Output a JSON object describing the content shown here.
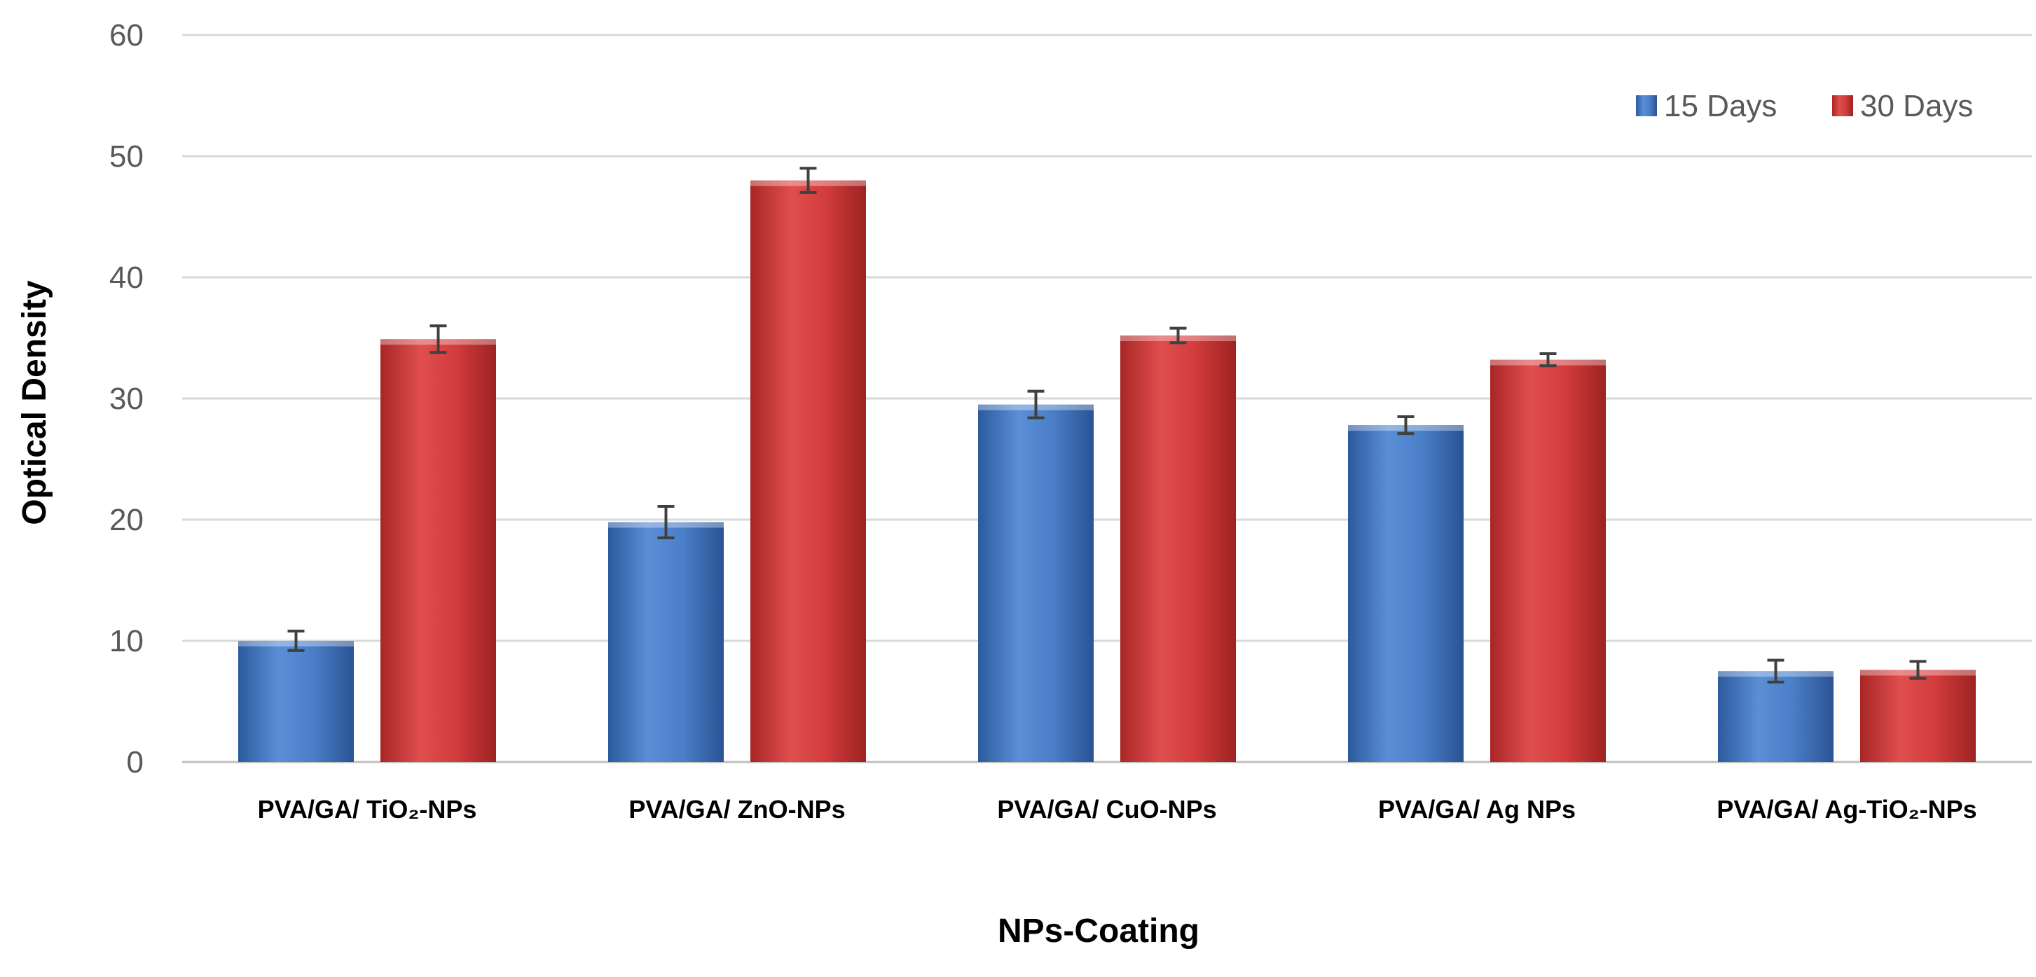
{
  "chart_data": {
    "type": "bar",
    "title": "",
    "xlabel": "NPs-Coating",
    "ylabel": "Optical Density",
    "ylim": [
      0,
      60
    ],
    "yticks": [
      0,
      10,
      20,
      30,
      40,
      50,
      60
    ],
    "grid": true,
    "legend_position": "top-right",
    "categories": [
      "PVA/GA/ TiO₂-NPs",
      "PVA/GA/ ZnO-NPs",
      "PVA/GA/ CuO-NPs",
      "PVA/GA/ Ag NPs",
      "PVA/GA/ Ag-TiO₂-NPs"
    ],
    "series": [
      {
        "name": "15 Days",
        "color": "#4a7ec6",
        "values": [
          10.0,
          19.8,
          29.5,
          27.8,
          7.5
        ],
        "errors": [
          0.8,
          1.3,
          1.1,
          0.7,
          0.9
        ]
      },
      {
        "name": "30 Days",
        "color": "#d23c3c",
        "values": [
          34.9,
          48.0,
          35.2,
          33.2,
          7.6
        ],
        "errors": [
          1.1,
          1.0,
          0.6,
          0.5,
          0.7
        ]
      }
    ]
  }
}
